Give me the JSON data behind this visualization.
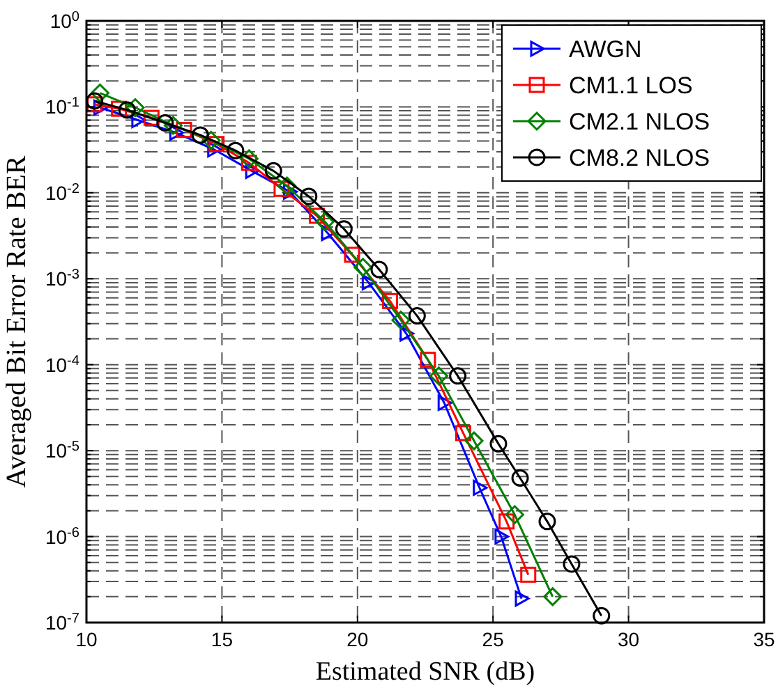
{
  "chart_data": {
    "type": "line",
    "xlabel": "Estimated SNR (dB)",
    "ylabel": "Averaged Bit Error Rate BER",
    "log": "y",
    "grid": true,
    "legend": "top right",
    "line_style": "solid",
    "xlim": [
      10,
      35
    ],
    "xticks": [
      10,
      15,
      20,
      25,
      30,
      35
    ],
    "ylim": [
      1e-07,
      1
    ],
    "yticks": [
      {
        "value": 1e-07,
        "label": "10$^{-7}$"
      },
      {
        "value": 2e-07,
        "label": null
      },
      {
        "value": 3e-07,
        "label": null
      },
      {
        "value": 4e-07,
        "label": null
      },
      {
        "value": 5e-07,
        "label": null
      },
      {
        "value": 6e-07,
        "label": null
      },
      {
        "value": 7e-07,
        "label": null
      },
      {
        "value": 8e-07,
        "label": null
      },
      {
        "value": 9e-07,
        "label": null
      },
      {
        "value": 1e-06,
        "label": "10$^{-6}$"
      },
      {
        "value": 2e-06,
        "label": null
      },
      {
        "value": 3e-06,
        "label": null
      },
      {
        "value": 4e-06,
        "label": null
      },
      {
        "value": 5e-06,
        "label": null
      },
      {
        "value": 6e-06,
        "label": null
      },
      {
        "value": 7e-06,
        "label": null
      },
      {
        "value": 8e-06,
        "label": null
      },
      {
        "value": 9e-06,
        "label": null
      },
      {
        "value": 1e-05,
        "label": "10$^{-5}$"
      },
      {
        "value": 2e-05,
        "label": null
      },
      {
        "value": 3e-05,
        "label": null
      },
      {
        "value": 4e-05,
        "label": null
      },
      {
        "value": 5e-05,
        "label": null
      },
      {
        "value": 6e-05,
        "label": null
      },
      {
        "value": 7e-05,
        "label": null
      },
      {
        "value": 8e-05,
        "label": null
      },
      {
        "value": 9e-05,
        "label": null
      },
      {
        "value": 0.0001,
        "label": "10$^{-4}$"
      },
      {
        "value": 0.0002,
        "label": null
      },
      {
        "value": 0.0003,
        "label": null
      },
      {
        "value": 0.0004,
        "label": null
      },
      {
        "value": 0.0005,
        "label": null
      },
      {
        "value": 0.0006,
        "label": null
      },
      {
        "value": 0.0007,
        "label": null
      },
      {
        "value": 0.0008,
        "label": null
      },
      {
        "value": 0.0009,
        "label": null
      },
      {
        "value": 0.001,
        "label": "10$^{-3}$"
      },
      {
        "value": 0.002,
        "label": null
      },
      {
        "value": 0.003,
        "label": null
      },
      {
        "value": 0.004,
        "label": null
      },
      {
        "value": 0.005,
        "label": null
      },
      {
        "value": 0.006,
        "label": null
      },
      {
        "value": 0.007,
        "label": null
      },
      {
        "value": 0.008,
        "label": null
      },
      {
        "value": 0.009,
        "label": null
      },
      {
        "value": 0.01,
        "label": "10$^{-2}$"
      },
      {
        "value": 0.02,
        "label": null
      },
      {
        "value": 0.03,
        "label": null
      },
      {
        "value": 0.04,
        "label": null
      },
      {
        "value": 0.05,
        "label": null
      },
      {
        "value": 0.06,
        "label": null
      },
      {
        "value": 0.07,
        "label": null
      },
      {
        "value": 0.08,
        "label": null
      },
      {
        "value": 0.09,
        "label": null
      },
      {
        "value": 0.1,
        "label": "10$^{-1}$"
      },
      {
        "value": 0.2,
        "label": null
      },
      {
        "value": 0.3,
        "label": null
      },
      {
        "value": 0.4,
        "label": null
      },
      {
        "value": 0.5,
        "label": null
      },
      {
        "value": 0.6,
        "label": null
      },
      {
        "value": 0.7,
        "label": null
      },
      {
        "value": 0.8,
        "label": null
      },
      {
        "value": 0.9,
        "label": null
      },
      {
        "value": 1,
        "label": "10$^{0}$"
      }
    ],
    "series": [
      {
        "name": "AWGN",
        "color": "#0000ff",
        "marker": "triangle",
        "x": [
          10.5,
          11.9,
          13.3,
          14.7,
          16.1,
          17.5,
          18.9,
          20.4,
          21.8,
          23.2,
          24.5,
          25.3,
          26.05
        ],
        "values": [
          0.098,
          0.07,
          0.05,
          0.032,
          0.018,
          0.0103,
          0.0034,
          0.00091,
          0.00023,
          3.6e-05,
          3.7e-06,
          1e-06,
          1.9e-07
        ]
      },
      {
        "name": "CM1.1 LOS",
        "color": "#ff0000",
        "marker": "square",
        "x": [
          10.3,
          11.2,
          12.4,
          13.6,
          14.8,
          16.0,
          17.2,
          18.5,
          19.8,
          21.2,
          22.6,
          23.9,
          25.5,
          26.3
        ],
        "values": [
          0.107,
          0.095,
          0.0745,
          0.054,
          0.037,
          0.0223,
          0.0111,
          0.0054,
          0.0019,
          0.00055,
          0.000114,
          1.6e-05,
          1.5e-06,
          3.6e-07
        ]
      },
      {
        "name": "CM2.1 NLOS",
        "color": "#008000",
        "marker": "diamond",
        "x": [
          10.5,
          11.8,
          13.2,
          14.6,
          16.0,
          17.4,
          18.8,
          20.2,
          21.6,
          23.0,
          24.3,
          25.8,
          27.2
        ],
        "values": [
          0.145,
          0.098,
          0.0607,
          0.0408,
          0.0249,
          0.012,
          0.0046,
          0.00136,
          0.00033,
          7.4e-05,
          1.3e-05,
          1.8e-06,
          2e-07
        ]
      },
      {
        "name": "CM8.2 NLOS",
        "color": "#000000",
        "marker": "circle",
        "x": [
          10.3,
          11.5,
          12.9,
          14.2,
          15.5,
          16.9,
          18.2,
          19.5,
          20.8,
          22.2,
          23.7,
          25.2,
          26.0,
          27.0,
          27.9,
          29.0
        ],
        "values": [
          0.117,
          0.092,
          0.065,
          0.047,
          0.031,
          0.018,
          0.0091,
          0.0038,
          0.00128,
          0.00037,
          7.4e-05,
          1.2e-05,
          4.8e-06,
          1.5e-06,
          4.8e-07,
          1.2e-07
        ]
      }
    ]
  }
}
